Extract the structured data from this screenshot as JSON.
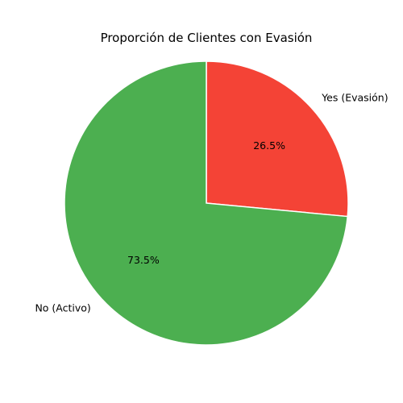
{
  "chart_data": {
    "type": "pie",
    "title": "Proporción de Clientes con Evasión",
    "slices": [
      {
        "label": "Yes (Evasión)",
        "value": 26.5,
        "pct_label": "26.5%",
        "color": "#F44336"
      },
      {
        "label": "No (Activo)",
        "value": 73.5,
        "pct_label": "73.5%",
        "color": "#4CAF50"
      }
    ]
  }
}
